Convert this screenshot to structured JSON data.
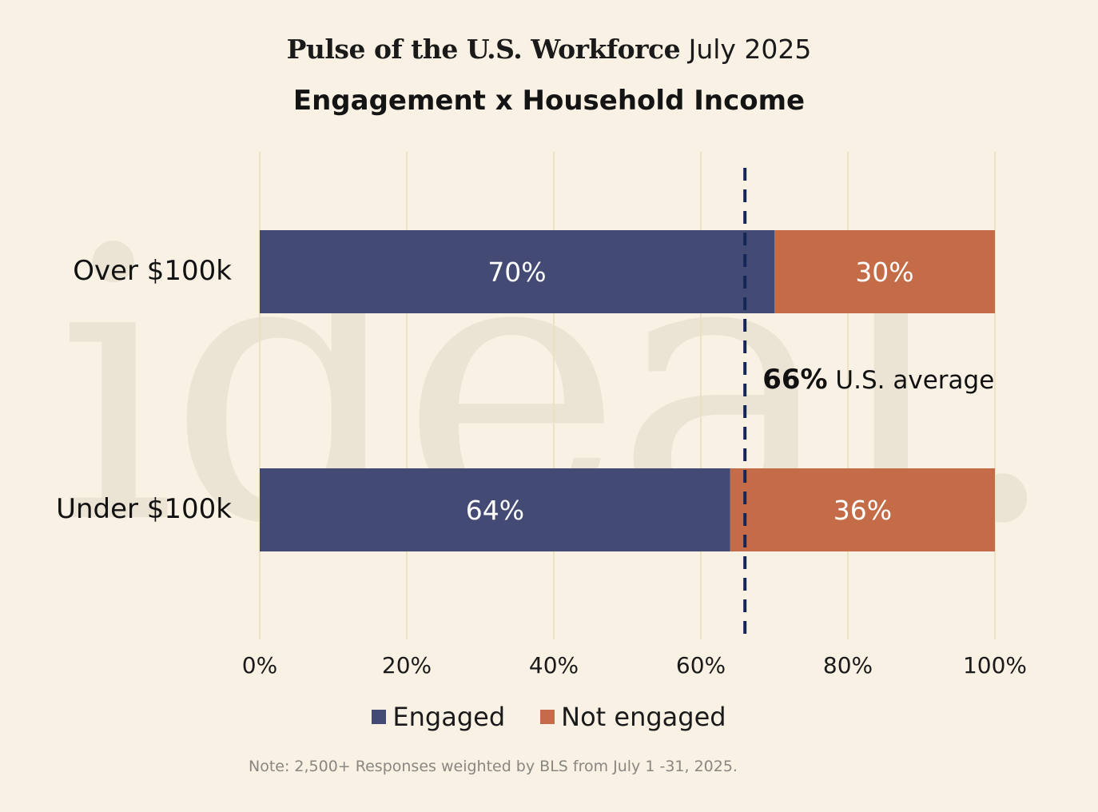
{
  "header": {
    "brand": "Pulse of the U.S. Workforce",
    "date": "July 2025"
  },
  "watermark": "ideal.",
  "note": "Note: 2,500+ Responses weighted by BLS from July 1 -31, 2025.",
  "colors": {
    "engaged": "#434b74",
    "not_engaged": "#c46c48",
    "gridline": "#ede0c3",
    "average_line": "#14255a",
    "background": "#f8f1e4"
  },
  "chart_data": {
    "type": "bar",
    "orientation": "horizontal",
    "stacked": true,
    "title": "Engagement x Household Income",
    "categories": [
      "Over $100k",
      "Under $100k"
    ],
    "series": [
      {
        "name": "Engaged",
        "values": [
          70,
          64
        ],
        "labels": [
          "70%",
          "64%"
        ]
      },
      {
        "name": "Not engaged",
        "values": [
          30,
          36
        ],
        "labels": [
          "30%",
          "36%"
        ]
      }
    ],
    "xlim": [
      0,
      100
    ],
    "xticks": [
      0,
      20,
      40,
      60,
      80,
      100
    ],
    "xtick_labels": [
      "0%",
      "20%",
      "40%",
      "60%",
      "80%",
      "100%"
    ],
    "grid": true,
    "legend_position": "bottom",
    "reference_line": {
      "value": 66,
      "style": "dashed",
      "label_value": "66%",
      "label_text": "U.S. average"
    }
  }
}
